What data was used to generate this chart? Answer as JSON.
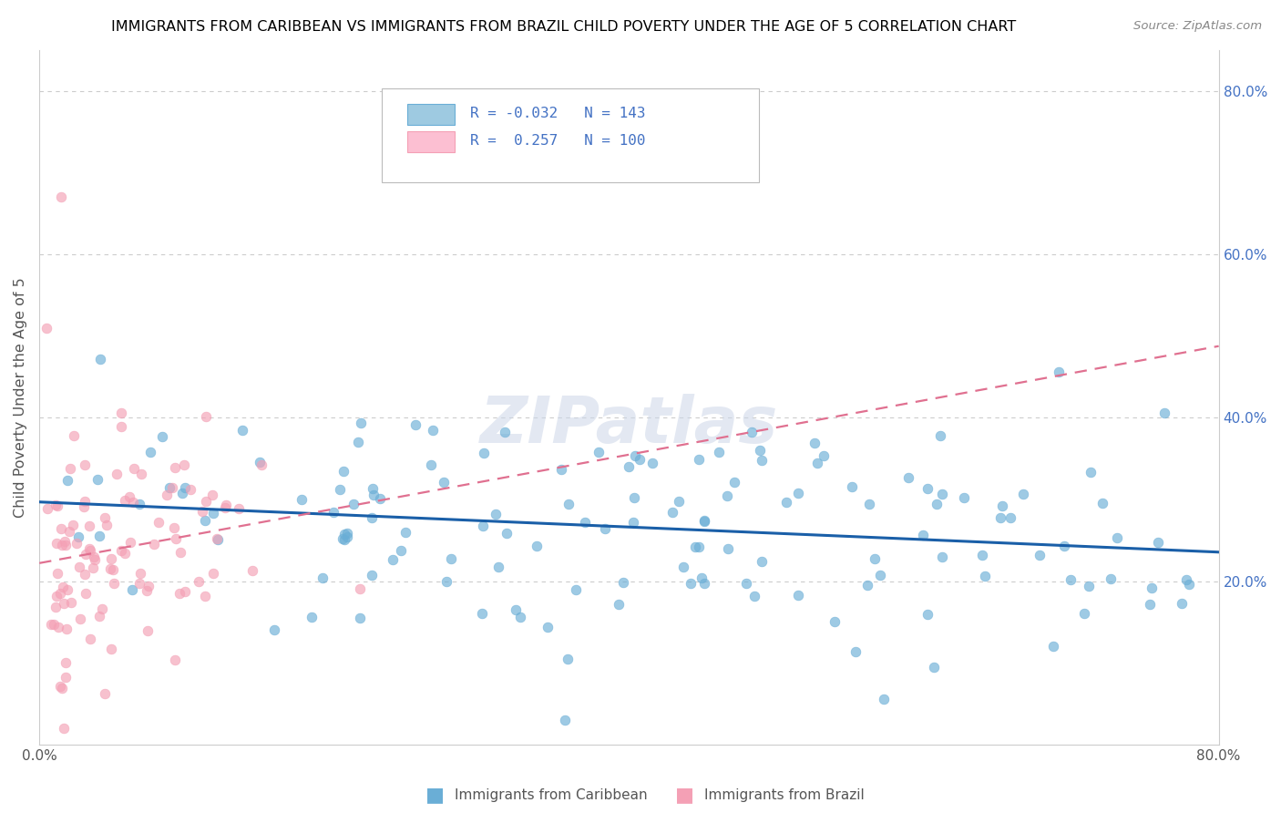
{
  "title": "IMMIGRANTS FROM CARIBBEAN VS IMMIGRANTS FROM BRAZIL CHILD POVERTY UNDER THE AGE OF 5 CORRELATION CHART",
  "source": "Source: ZipAtlas.com",
  "ylabel": "Child Poverty Under the Age of 5",
  "xmin": 0.0,
  "xmax": 0.8,
  "ymin": 0.0,
  "ymax": 0.85,
  "blue_R": -0.032,
  "blue_N": 143,
  "pink_R": 0.257,
  "pink_N": 100,
  "blue_color": "#6aaed6",
  "pink_color": "#f4a0b5",
  "blue_line_color": "#1a5fa8",
  "pink_line_color": "#e07090",
  "watermark": "ZIPatlas",
  "legend_label_blue": "Immigrants from Caribbean",
  "legend_label_pink": "Immigrants from Brazil"
}
